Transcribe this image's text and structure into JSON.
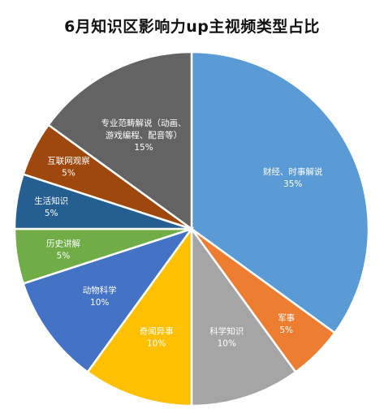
{
  "chart_data": {
    "type": "pie",
    "title": "6月知识区影响力up主视频类型占比",
    "slices": [
      {
        "label": [
          "财经、时事解说"
        ],
        "value": 35,
        "pct": "35%",
        "color": "#5B9BD5"
      },
      {
        "label": [
          "军事"
        ],
        "value": 5,
        "pct": "5%",
        "color": "#ED7D31"
      },
      {
        "label": [
          "科学知识"
        ],
        "value": 10,
        "pct": "10%",
        "color": "#A5A5A5"
      },
      {
        "label": [
          "奇闻异事"
        ],
        "value": 10,
        "pct": "10%",
        "color": "#FFC000"
      },
      {
        "label": [
          "动物科学"
        ],
        "value": 10,
        "pct": "10%",
        "color": "#4472C4"
      },
      {
        "label": [
          "历史讲解"
        ],
        "value": 5,
        "pct": "5%",
        "color": "#70AD47"
      },
      {
        "label": [
          "生活知识"
        ],
        "value": 5,
        "pct": "5%",
        "color": "#255E91"
      },
      {
        "label": [
          "互联网观察"
        ],
        "value": 5,
        "pct": "5%",
        "color": "#9E480E"
      },
      {
        "label": [
          "专业范畴解说（动画、",
          "游戏编程、配音等）"
        ],
        "value": 15,
        "pct": "15%",
        "color": "#636363"
      }
    ],
    "start": "12 o'clock",
    "direction": "clockwise",
    "legend": "none",
    "data_labels": "inside slices"
  }
}
